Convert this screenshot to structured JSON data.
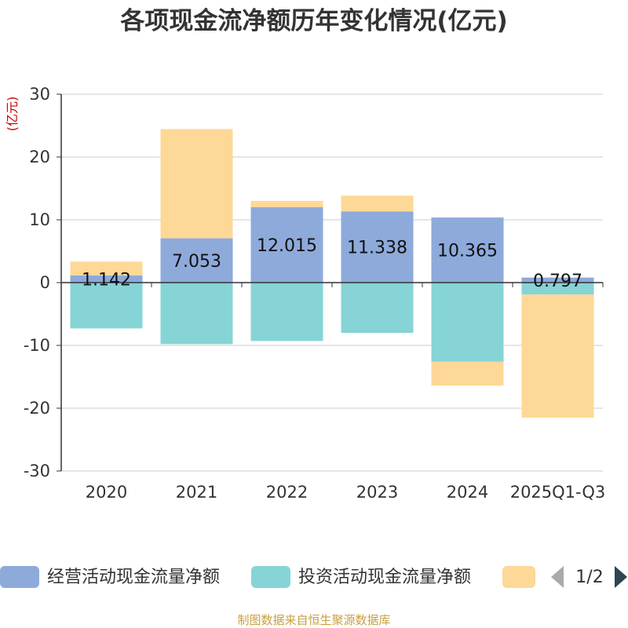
{
  "chart_data": {
    "type": "bar",
    "stacked": true,
    "title": "各项现金流净额历年变化情况(亿元)",
    "ylabel": "(亿元)",
    "ylim": [
      -30,
      30
    ],
    "yticks": [
      30,
      20,
      10,
      0,
      -10,
      -20,
      -30
    ],
    "categories": [
      "2020",
      "2021",
      "2022",
      "2023",
      "2024",
      "2025Q1-Q3"
    ],
    "series": [
      {
        "name": "经营活动现金流量净额",
        "color": "#8eaadb",
        "values": [
          1.142,
          7.053,
          12.015,
          11.338,
          10.365,
          0.797
        ],
        "labels": [
          "1.142",
          "7.053",
          "12.015",
          "11.338",
          "10.365",
          "0.797"
        ]
      },
      {
        "name": "投资活动现金流量净额",
        "color": "#86d4d6",
        "values": [
          -7.3,
          -9.8,
          -9.3,
          -8.0,
          -12.6,
          -1.9
        ]
      },
      {
        "name": "",
        "color": "#fdd897",
        "values": [
          2.2,
          17.4,
          1.0,
          2.5,
          -3.8,
          -19.6
        ]
      }
    ]
  },
  "legend": {
    "page": "1/2"
  },
  "source": "制图数据来自恒生聚源数据库"
}
